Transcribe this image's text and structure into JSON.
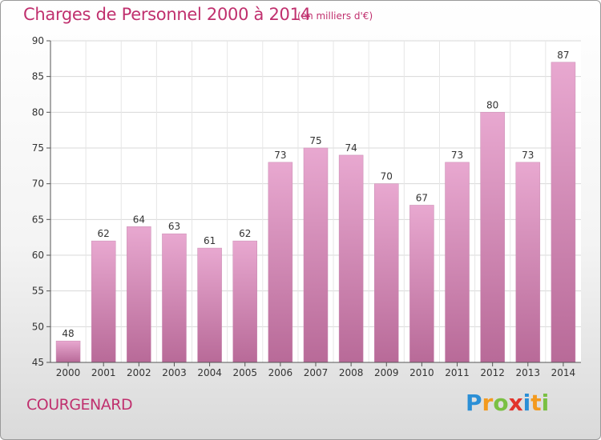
{
  "header": {
    "title": "Charges de Personnel 2000 à 2014",
    "subtitle": "(en milliers d'€)"
  },
  "footer": {
    "commune": "COURGENARD",
    "logo": [
      "P",
      "r",
      "o",
      "x",
      "i",
      "t",
      "i"
    ],
    "logo_colors": [
      "#2b8fd6",
      "#f39a1e",
      "#7ac043",
      "#e2342b",
      "#2b8fd6",
      "#f39a1e",
      "#7ac043"
    ]
  },
  "colors": {
    "accent": "#c0306e",
    "bar_top": "#e8a8d0",
    "bar_bottom": "#b86a98"
  },
  "chart_data": {
    "type": "bar",
    "categories": [
      "2000",
      "2001",
      "2002",
      "2003",
      "2004",
      "2005",
      "2006",
      "2007",
      "2008",
      "2009",
      "2010",
      "2011",
      "2012",
      "2013",
      "2014"
    ],
    "values": [
      48,
      62,
      64,
      63,
      61,
      62,
      73,
      75,
      74,
      70,
      67,
      73,
      80,
      73,
      87
    ],
    "value_labels": [
      "48",
      "62",
      "64",
      "63",
      "61",
      "62",
      "73",
      "75",
      "74",
      "70",
      "67",
      "73",
      "80",
      "73",
      "87"
    ],
    "ylim": [
      45,
      90
    ],
    "yticks": [
      "45",
      "50",
      "55",
      "60",
      "65",
      "70",
      "75",
      "80",
      "85",
      "90"
    ],
    "grid": true
  }
}
